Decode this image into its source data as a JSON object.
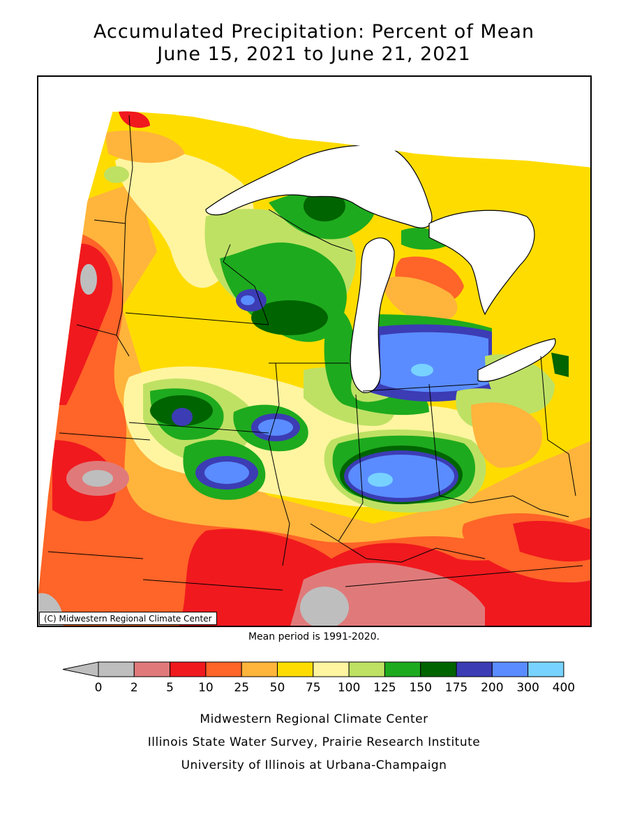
{
  "title": {
    "line1": "Accumulated Precipitation: Percent of Mean",
    "line2": "June 15, 2021 to June 21, 2021"
  },
  "map": {
    "copyright": "(C) Midwestern Regional Climate Center",
    "colors": {
      "pct_0_2": "#bebebe",
      "pct_2_5": "#e07a7a",
      "pct_5_10": "#f0191e",
      "pct_10_25": "#ff6428",
      "pct_25_50": "#ffb43c",
      "pct_50_75": "#ffdc00",
      "pct_75_100": "#fff5a0",
      "pct_100_125": "#bee164",
      "pct_125_150": "#1eaa1e",
      "pct_150_175": "#006400",
      "pct_175_200": "#3c3cb4",
      "pct_200_300": "#5a8cff",
      "pct_300_400": "#78d2ff",
      "water": "#ffffff",
      "border": "#000000"
    }
  },
  "mean_period": "Mean period is 1991-2020.",
  "legend": {
    "ticks": [
      "0",
      "2",
      "5",
      "10",
      "25",
      "50",
      "75",
      "100",
      "125",
      "150",
      "175",
      "200",
      "300",
      "400"
    ],
    "colors": [
      "#bebebe",
      "#e07a7a",
      "#f0191e",
      "#ff6428",
      "#ffb43c",
      "#ffdc00",
      "#fff5a0",
      "#bee164",
      "#1eaa1e",
      "#006400",
      "#3c3cb4",
      "#5a8cff",
      "#78d2ff"
    ],
    "under_color": "#bebebe"
  },
  "credits": {
    "line1": "Midwestern Regional Climate Center",
    "line2": "Illinois State Water Survey, Prairie Research Institute",
    "line3": "University of Illinois at Urbana-Champaign"
  }
}
